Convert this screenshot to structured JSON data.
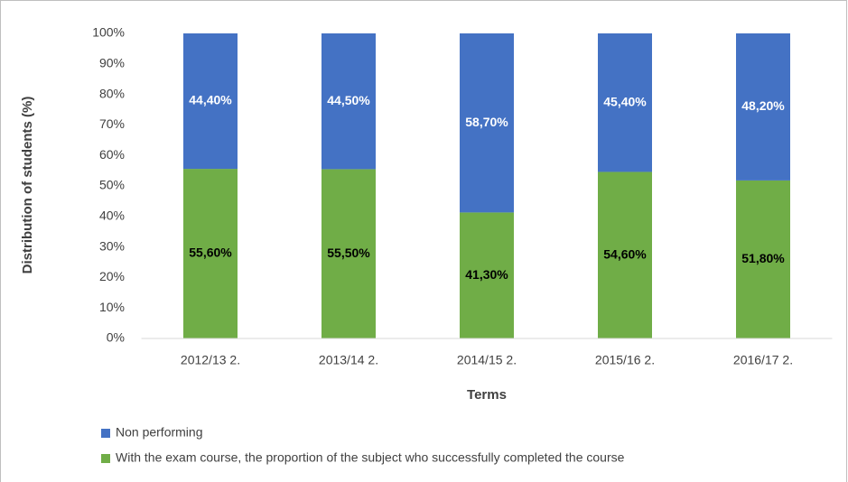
{
  "chart_data": {
    "type": "stacked_bar",
    "categories": [
      "2012/13 2.",
      "2013/14 2.",
      "2014/15 2.",
      "2015/16 2.",
      "2016/17 2."
    ],
    "series": [
      {
        "name": "Non performing",
        "color": "#4472c4",
        "values": [
          44.4,
          44.5,
          58.7,
          45.4,
          48.2
        ],
        "value_labels": [
          "44,40%",
          "44,50%",
          "58,70%",
          "45,40%",
          "48,20%"
        ]
      },
      {
        "name": "With the exam course, the proportion of the subject who successfully completed the course",
        "color": "#70ad47",
        "values": [
          55.6,
          55.5,
          41.3,
          54.6,
          51.8
        ],
        "value_labels": [
          "55,60%",
          "55,50%",
          "41,30%",
          "54,60%",
          "51,80%"
        ]
      }
    ],
    "ylabel": "Distribution of students (%)",
    "xlabel": "Terms",
    "ylim": [
      0,
      100
    ],
    "yticks": [
      {
        "value": 0,
        "label": "0%"
      },
      {
        "value": 10,
        "label": "10%"
      },
      {
        "value": 20,
        "label": "20%"
      },
      {
        "value": 30,
        "label": "30%"
      },
      {
        "value": 40,
        "label": "40%"
      },
      {
        "value": 50,
        "label": "50%"
      },
      {
        "value": 60,
        "label": "60%"
      },
      {
        "value": 70,
        "label": "70%"
      },
      {
        "value": 80,
        "label": "80%"
      },
      {
        "value": 90,
        "label": "90%"
      },
      {
        "value": 100,
        "label": "100%"
      }
    ],
    "legend": "bottom-left"
  }
}
